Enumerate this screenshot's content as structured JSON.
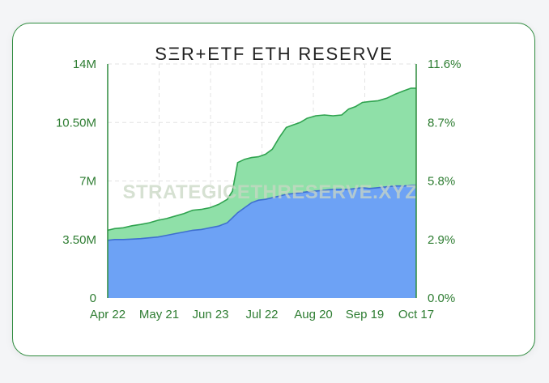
{
  "chart_data": {
    "type": "area",
    "title": "SΞR+ETF ETH RESERVE",
    "watermark": "STRATEGICETHRESERVE.XYZ",
    "x_tick_labels": [
      "Apr 22",
      "May 21",
      "Jun 23",
      "Jul 22",
      "Aug 20",
      "Sep 19",
      "Oct 17"
    ],
    "y_left": {
      "ticks": [
        "14M",
        "10.50M",
        "7M",
        "3.50M",
        "0"
      ],
      "ylim": [
        0,
        14000000
      ]
    },
    "y_right": {
      "ticks": [
        "11.6%",
        "8.7%",
        "5.8%",
        "2.9%",
        "0.0%"
      ],
      "ylim": [
        0,
        11.6
      ],
      "unit": "%"
    },
    "grid": true,
    "stacked": true,
    "x": [
      "2025-04-22",
      "2025-04-26",
      "2025-05-01",
      "2025-05-06",
      "2025-05-11",
      "2025-05-16",
      "2025-05-21",
      "2025-05-26",
      "2025-05-31",
      "2025-06-05",
      "2025-06-10",
      "2025-06-15",
      "2025-06-20",
      "2025-06-25",
      "2025-06-30",
      "2025-07-03",
      "2025-07-06",
      "2025-07-10",
      "2025-07-14",
      "2025-07-18",
      "2025-07-22",
      "2025-07-26",
      "2025-07-30",
      "2025-08-03",
      "2025-08-07",
      "2025-08-11",
      "2025-08-15",
      "2025-08-20",
      "2025-08-25",
      "2025-08-30",
      "2025-09-04",
      "2025-09-08",
      "2025-09-12",
      "2025-09-16",
      "2025-09-20",
      "2025-09-25",
      "2025-09-30",
      "2025-10-05",
      "2025-10-10",
      "2025-10-14",
      "2025-10-17"
    ],
    "series": [
      {
        "color": "#6da2f5",
        "values": [
          3.45,
          3.5,
          3.5,
          3.52,
          3.55,
          3.6,
          3.65,
          3.75,
          3.85,
          3.95,
          4.05,
          4.1,
          4.2,
          4.3,
          4.5,
          4.8,
          5.1,
          5.4,
          5.7,
          5.85,
          5.9,
          6.0,
          6.1,
          6.2,
          6.25,
          6.3,
          6.35,
          6.4,
          6.45,
          6.5,
          6.5,
          6.5,
          6.55,
          6.6,
          6.55,
          6.6,
          6.65,
          6.7,
          6.7,
          6.75,
          6.75
        ]
      },
      {
        "color": "#8fe0a8",
        "values": [
          0.6,
          0.65,
          0.7,
          0.8,
          0.85,
          0.9,
          1.0,
          1.0,
          1.05,
          1.1,
          1.2,
          1.2,
          1.2,
          1.3,
          1.4,
          1.6,
          3.0,
          2.9,
          2.7,
          2.6,
          2.7,
          2.9,
          3.5,
          4.0,
          4.1,
          4.2,
          4.4,
          4.5,
          4.5,
          4.4,
          4.45,
          4.8,
          4.9,
          5.1,
          5.2,
          5.2,
          5.3,
          5.5,
          5.7,
          5.8,
          5.8
        ]
      }
    ]
  }
}
